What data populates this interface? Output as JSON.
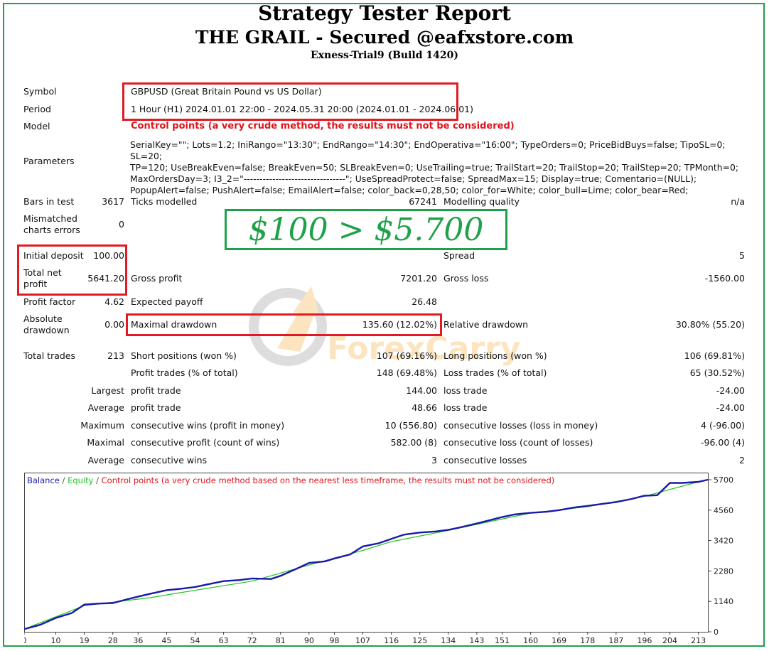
{
  "header": {
    "title": "Strategy Tester Report",
    "subtitle": "THE GRAIL - Secured @eafxstore.com",
    "server": "Exness-Trial9 (Build 1420)"
  },
  "settings": {
    "symbol_label": "Symbol",
    "symbol_value": "GBPUSD (Great Britain Pound vs US Dollar)",
    "period_label": "Period",
    "period_value": "1 Hour (H1) 2024.01.01 22:00 - 2024.05.31 20:00 (2024.01.01 - 2024.06.01)",
    "model_label": "Model",
    "model_value": "Control points (a very crude method, the results must not be considered)",
    "parameters_label": "Parameters",
    "parameters_lines": [
      "SerialKey=\"\"; Lots=1.2; IniRango=\"13:30\"; EndRango=\"14:30\"; EndOperativa=\"16:00\"; TypeOrders=0; PriceBidBuys=false; TipoSL=0; SL=20;",
      "TP=120; UseBreakEven=false; BreakEven=50; SLBreakEven=0; UseTrailing=true; TrailStart=20; TrailStop=20; TrailStep=20; TPMonth=0;",
      "MaxOrdersDay=3; I3_2=\"--------------------------------\"; UseSpreadProtect=false; SpreadMax=15; Display=true; Comentario=(NULL);",
      "PopupAlert=false; PushAlert=false; EmailAlert=false; color_back=0,28,50; color_for=White; color_bull=Lime; color_bear=Red;"
    ]
  },
  "stats": {
    "bars_label": "Bars in test",
    "bars_value": "3617",
    "ticks_label": "Ticks modelled",
    "ticks_value": "67241",
    "mq_label": "Modelling quality",
    "mq_value": "n/a",
    "mismatch_label_1": "Mismatched",
    "mismatch_label_2": "charts errors",
    "mismatch_value": "0",
    "deposit_label": "Initial deposit",
    "deposit_value": "100.00",
    "spread_label": "Spread",
    "spread_value": "5",
    "tnp_label_1": "Total net",
    "tnp_label_2": "profit",
    "tnp_value": "5641.20",
    "gross_profit_label": "Gross profit",
    "gross_profit_value": "7201.20",
    "gross_loss_label": "Gross loss",
    "gross_loss_value": "-1560.00",
    "pf_label": "Profit factor",
    "pf_value": "4.62",
    "ep_label": "Expected payoff",
    "ep_value": "26.48",
    "abs_dd_label_1": "Absolute",
    "abs_dd_label_2": "drawdown",
    "abs_dd_value": "0.00",
    "max_dd_label": "Maximal drawdown",
    "max_dd_value": "135.60 (12.02%)",
    "rel_dd_label": "Relative drawdown",
    "rel_dd_value": "30.80% (55.20)",
    "tt_label": "Total trades",
    "tt_value": "213",
    "short_label": "Short positions (won %)",
    "short_value": "107 (69.16%)",
    "long_label": "Long positions (won %)",
    "long_value": "106 (69.81%)",
    "pt_label": "Profit trades (% of total)",
    "pt_value": "148 (69.48%)",
    "lt_label": "Loss trades (% of total)",
    "lt_value": "65 (30.52%)",
    "largest_label": "Largest",
    "lpt_label": "profit trade",
    "lpt_value": "144.00",
    "llt_label": "loss trade",
    "llt_value": "-24.00",
    "average_label": "Average",
    "apt_label": "profit trade",
    "apt_value": "48.66",
    "alt_label": "loss trade",
    "alt_value": "-24.00",
    "maximum_label": "Maximum",
    "mcw_label": "consecutive wins (profit in money)",
    "mcw_value": "10 (556.80)",
    "mcl_label": "consecutive losses (loss in money)",
    "mcl_value": "4 (-96.00)",
    "maximal_label": "Maximal",
    "mcp_label": "consecutive profit (count of wins)",
    "mcp_value": "582.00 (8)",
    "mclc_label": "consecutive loss (count of losses)",
    "mclc_value": "-96.00 (4)",
    "average2_label": "Average",
    "acw_label": "consecutive wins",
    "acw_value": "3",
    "acl_label": "consecutive losses",
    "acl_value": "2"
  },
  "promo": {
    "text": "$100 > $5.700",
    "watermark": "ForexCarry"
  },
  "colors": {
    "highlight": "#e01b24",
    "promo": "#1fa14a",
    "balance": "#1a1aa8",
    "equity": "#22c322",
    "warning": "#e0141b"
  },
  "chart_data": {
    "type": "line",
    "legend": [
      {
        "label": "Balance",
        "color": "#1a1aa8"
      },
      {
        "label": "Equity",
        "color": "#22c322"
      },
      {
        "label": "Control points (a very crude method based on the nearest less timeframe, the results must not be considered)",
        "color": "#e0141b"
      }
    ],
    "x_ticks": [
      "0",
      "10",
      "19",
      "28",
      "36",
      "45",
      "54",
      "63",
      "72",
      "81",
      "90",
      "98",
      "107",
      "116",
      "125",
      "134",
      "143",
      "151",
      "160",
      "169",
      "178",
      "187",
      "196",
      "204",
      "213"
    ],
    "y_ticks": [
      "0",
      "1140",
      "2280",
      "3420",
      "4560",
      "5700"
    ],
    "xlim": [
      0,
      216
    ],
    "ylim": [
      0,
      5700
    ],
    "series": [
      {
        "name": "Balance",
        "color": "#1a1aa8",
        "x": [
          0,
          5,
          10,
          15,
          19,
          24,
          28,
          32,
          36,
          40,
          45,
          50,
          54,
          58,
          63,
          68,
          72,
          78,
          81,
          86,
          90,
          95,
          98,
          103,
          107,
          112,
          116,
          120,
          125,
          130,
          134,
          138,
          143,
          147,
          151,
          155,
          160,
          165,
          169,
          174,
          178,
          183,
          187,
          192,
          196,
          200,
          204,
          208,
          213,
          216
        ],
        "y": [
          100,
          260,
          520,
          700,
          1020,
          1060,
          1080,
          1200,
          1320,
          1430,
          1560,
          1620,
          1680,
          1780,
          1900,
          1940,
          2000,
          1980,
          2100,
          2360,
          2580,
          2640,
          2750,
          2900,
          3200,
          3320,
          3480,
          3640,
          3720,
          3760,
          3820,
          3920,
          4060,
          4180,
          4300,
          4400,
          4460,
          4500,
          4560,
          4660,
          4720,
          4800,
          4860,
          4980,
          5100,
          5120,
          5580,
          5580,
          5620,
          5700
        ]
      },
      {
        "name": "Equity",
        "color": "#22c322",
        "x": [
          0,
          19,
          40,
          48,
          72,
          90,
          107,
          116,
          134,
          160,
          178,
          196,
          213
        ],
        "y": [
          100,
          980,
          1280,
          1440,
          1900,
          2500,
          3050,
          3380,
          3800,
          4450,
          4690,
          5080,
          5620
        ]
      }
    ]
  }
}
